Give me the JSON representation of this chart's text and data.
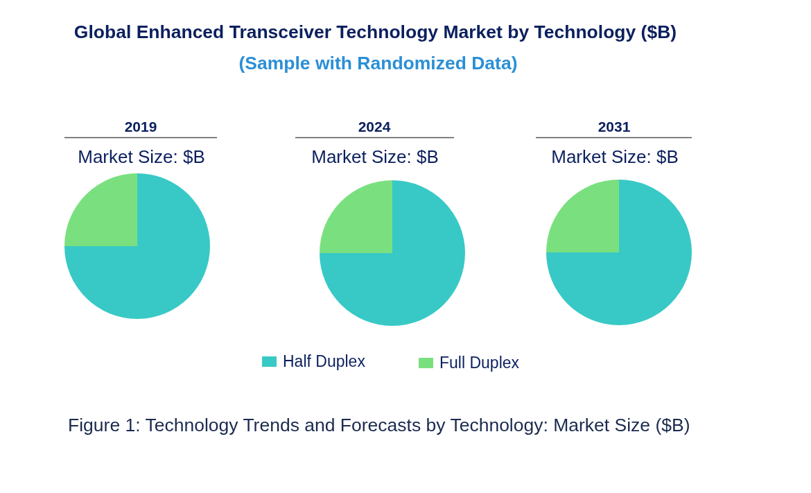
{
  "chart_data": [
    {
      "type": "other",
      "title": "Global Enhanced Transceiver Technology Market by Technology ($B)",
      "subtitle": "(Sample with Randomized Data)",
      "annotations": [
        "Figure 1: Technology Trends and Forecasts by Technology: Market Size ($B)"
      ]
    },
    {
      "type": "pie",
      "title": "2019",
      "subtitle": "Market Size: $B",
      "values": [
        75,
        25
      ],
      "colors": [
        "#38c9c6",
        "#7ae07f"
      ]
    },
    {
      "type": "pie",
      "title": "2024",
      "subtitle": "Market Size: $B",
      "categories": [
        "Half Duplex",
        "Full Duplex"
      ],
      "values": [
        75,
        25
      ],
      "colors": [
        "#38c9c6",
        "#7ae07f"
      ],
      "legend": "bottom"
    },
    {
      "type": "pie",
      "title": "2031",
      "subtitle": "Market Size: $B",
      "values": [
        75,
        25
      ],
      "colors": [
        "#38c9c6",
        "#7ae07f"
      ]
    }
  ]
}
